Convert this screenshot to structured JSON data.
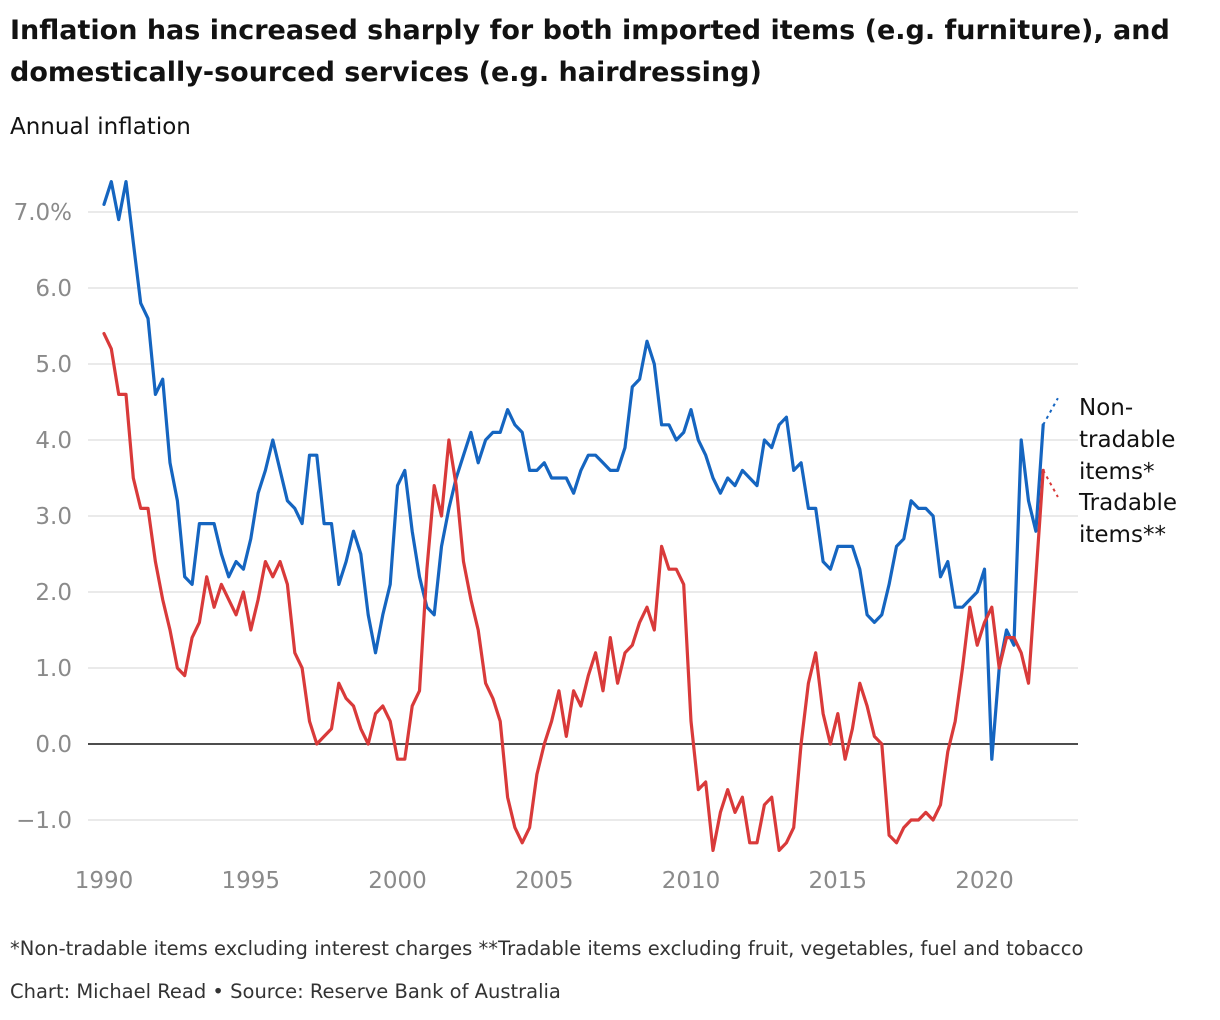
{
  "header": {
    "title": "Inflation has increased sharply for both imported items (e.g. furniture), and domestically-sourced services (e.g. hairdressing)",
    "subtitle": "Annual inflation"
  },
  "footer": {
    "footnote": "*Non-tradable items excluding interest charges **Tradable items excluding fruit, vegetables, fuel and tobacco",
    "credit": "Chart: Michael Read • Source: Reserve Bank of Australia"
  },
  "colors": {
    "non_tradable": "#1565c0",
    "tradable": "#d93a3a",
    "grid": "#dddddd",
    "zero_line": "#121212",
    "tick_text": "#8a8a8a"
  },
  "chart_data": {
    "type": "line",
    "title": "Inflation has increased sharply for both imported items (e.g. furniture), and domestically-sourced services (e.g. hairdressing)",
    "ylabel": "Annual inflation",
    "xlim": [
      1990,
      2023
    ],
    "ylim": [
      -1.4,
      7.4
    ],
    "grid": true,
    "legend": "direct labels at right end of lines",
    "y_ticks": [
      {
        "value": 7,
        "label": "7.0%"
      },
      {
        "value": 6,
        "label": "6.0"
      },
      {
        "value": 5,
        "label": "5.0"
      },
      {
        "value": 4,
        "label": "4.0"
      },
      {
        "value": 3,
        "label": "3.0"
      },
      {
        "value": 2,
        "label": "2.0"
      },
      {
        "value": 1,
        "label": "1.0"
      },
      {
        "value": 0,
        "label": "0.0"
      },
      {
        "value": -1,
        "label": "−1.0"
      }
    ],
    "x_ticks": [
      {
        "value": 1990,
        "label": "1990"
      },
      {
        "value": 1995,
        "label": "1995"
      },
      {
        "value": 2000,
        "label": "2000"
      },
      {
        "value": 2005,
        "label": "2005"
      },
      {
        "value": 2010,
        "label": "2010"
      },
      {
        "value": 2015,
        "label": "2015"
      },
      {
        "value": 2020,
        "label": "2020"
      }
    ],
    "x_start": 1990.0,
    "x_step": 0.25,
    "series": [
      {
        "name": "Non-tradable items*",
        "label_lines": [
          "Non-",
          "tradable",
          "items*"
        ],
        "color": "#1565c0",
        "values": [
          7.1,
          7.4,
          6.9,
          7.4,
          6.6,
          5.8,
          5.6,
          4.6,
          4.8,
          3.7,
          3.2,
          2.2,
          2.1,
          2.9,
          2.9,
          2.9,
          2.5,
          2.2,
          2.4,
          2.3,
          2.7,
          3.3,
          3.6,
          4.0,
          3.6,
          3.2,
          3.1,
          2.9,
          3.8,
          3.8,
          2.9,
          2.9,
          2.1,
          2.4,
          2.8,
          2.5,
          1.7,
          1.2,
          1.7,
          2.1,
          3.4,
          3.6,
          2.8,
          2.2,
          1.8,
          1.7,
          2.6,
          3.1,
          3.5,
          3.8,
          4.1,
          3.7,
          4.0,
          4.1,
          4.1,
          4.4,
          4.2,
          4.1,
          3.6,
          3.6,
          3.7,
          3.5,
          3.5,
          3.5,
          3.3,
          3.6,
          3.8,
          3.8,
          3.7,
          3.6,
          3.6,
          3.9,
          4.7,
          4.8,
          5.3,
          5.0,
          4.2,
          4.2,
          4.0,
          4.1,
          4.4,
          4.0,
          3.8,
          3.5,
          3.3,
          3.5,
          3.4,
          3.6,
          3.5,
          3.4,
          4.0,
          3.9,
          4.2,
          4.3,
          3.6,
          3.7,
          3.1,
          3.1,
          2.4,
          2.3,
          2.6,
          2.6,
          2.6,
          2.3,
          1.7,
          1.6,
          1.7,
          2.1,
          2.6,
          2.7,
          3.2,
          3.1,
          3.1,
          3.0,
          2.2,
          2.4,
          1.8,
          1.8,
          1.9,
          2.0,
          2.3,
          -0.2,
          1.0,
          1.5,
          1.3,
          4.0,
          3.2,
          2.8,
          4.2
        ],
        "projection": 4.55
      },
      {
        "name": "Tradable items**",
        "label_lines": [
          "Tradable",
          "items**"
        ],
        "color": "#d93a3a",
        "values": [
          5.4,
          5.2,
          4.6,
          4.6,
          3.5,
          3.1,
          3.1,
          2.4,
          1.9,
          1.5,
          1.0,
          0.9,
          1.4,
          1.6,
          2.2,
          1.8,
          2.1,
          1.9,
          1.7,
          2.0,
          1.5,
          1.9,
          2.4,
          2.2,
          2.4,
          2.1,
          1.2,
          1.0,
          0.3,
          0.0,
          0.1,
          0.2,
          0.8,
          0.6,
          0.5,
          0.2,
          0.0,
          0.4,
          0.5,
          0.3,
          -0.2,
          -0.2,
          0.5,
          0.7,
          2.3,
          3.4,
          3.0,
          4.0,
          3.4,
          2.4,
          1.9,
          1.5,
          0.8,
          0.6,
          0.3,
          -0.7,
          -1.1,
          -1.3,
          -1.1,
          -0.4,
          0.0,
          0.3,
          0.7,
          0.1,
          0.7,
          0.5,
          0.9,
          1.2,
          0.7,
          1.4,
          0.8,
          1.2,
          1.3,
          1.6,
          1.8,
          1.5,
          2.6,
          2.3,
          2.3,
          2.1,
          0.3,
          -0.6,
          -0.5,
          -1.4,
          -0.9,
          -0.6,
          -0.9,
          -0.7,
          -1.3,
          -1.3,
          -0.8,
          -0.7,
          -1.4,
          -1.3,
          -1.1,
          0.0,
          0.8,
          1.2,
          0.4,
          0.0,
          0.4,
          -0.2,
          0.2,
          0.8,
          0.5,
          0.1,
          0.0,
          -1.2,
          -1.3,
          -1.1,
          -1.0,
          -1.0,
          -0.9,
          -1.0,
          -0.8,
          -0.1,
          0.3,
          1.0,
          1.8,
          1.3,
          1.6,
          1.8,
          1.0,
          1.4,
          1.4,
          1.2,
          0.8,
          2.2,
          3.6
        ],
        "projection": 3.25
      }
    ]
  }
}
